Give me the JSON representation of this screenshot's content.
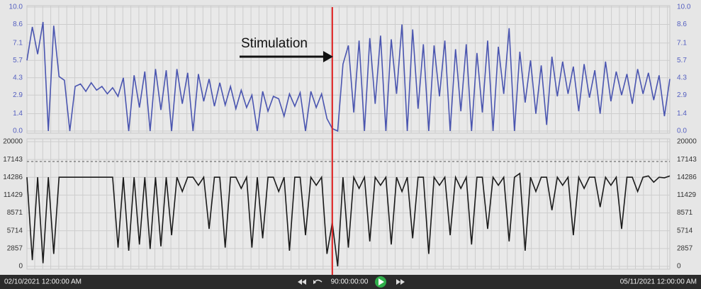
{
  "chart_data": [
    {
      "type": "line",
      "annotation": "Stimulation",
      "marker_index": 57,
      "marker_color": "#e02020",
      "ylim": [
        0,
        10
      ],
      "yticks": [
        {
          "value": 0,
          "label": "0.0"
        },
        1.4,
        2.9,
        4.3,
        5.7,
        7.1,
        8.6,
        {
          "value": 10,
          "label": "10.0"
        }
      ],
      "tick_color": "#5560c0",
      "grid": true,
      "series": [
        {
          "color": "#4a55b0",
          "values": [
            5.7,
            8.4,
            6.2,
            8.8,
            0,
            8.5,
            4.4,
            4.1,
            0,
            3.6,
            3.8,
            3.2,
            3.9,
            3.3,
            3.6,
            3.0,
            3.5,
            2.8,
            4.3,
            0,
            4.5,
            1.9,
            4.8,
            0,
            5.0,
            1.7,
            4.9,
            0,
            5.0,
            2.2,
            4.7,
            0,
            4.6,
            2.4,
            4.2,
            2.0,
            3.9,
            2.1,
            3.6,
            1.8,
            3.3,
            1.9,
            2.9,
            0,
            3.2,
            1.6,
            2.8,
            2.6,
            1.2,
            3.0,
            2.0,
            3.1,
            0,
            3.2,
            1.9,
            3.0,
            1.0,
            0.2,
            0,
            5.4,
            6.9,
            1.5,
            7.3,
            0,
            7.5,
            2.2,
            7.7,
            0,
            7.4,
            3.0,
            8.6,
            0,
            8.2,
            1.8,
            7.0,
            0,
            6.9,
            2.8,
            7.3,
            0,
            6.6,
            1.6,
            7.0,
            0,
            6.3,
            1.5,
            7.3,
            0,
            6.8,
            3.0,
            8.3,
            0,
            6.4,
            2.3,
            5.7,
            1.4,
            5.3,
            0.5,
            6.0,
            2.8,
            5.6,
            3.0,
            5.2,
            1.6,
            5.4,
            2.7,
            4.9,
            1.4,
            5.6,
            2.4,
            4.8,
            2.9,
            4.6,
            2.2,
            5.0,
            3.0,
            4.7,
            2.5,
            4.5,
            1.2,
            4.2
          ]
        }
      ]
    },
    {
      "type": "line",
      "ylim": [
        0,
        20000
      ],
      "yticks": [
        0,
        2857,
        5714,
        8571,
        11429,
        14286,
        17143,
        20000
      ],
      "tick_color": "#333333",
      "grid": true,
      "series": [
        {
          "color": "#1a1a1a",
          "values": [
            14300,
            1000,
            14300,
            500,
            14300,
            2000,
            14300,
            14300,
            14300,
            14300,
            14300,
            14300,
            14300,
            14300,
            14300,
            14300,
            14300,
            3000,
            14300,
            2500,
            14300,
            3500,
            14300,
            2800,
            14300,
            3200,
            14300,
            5000,
            14300,
            12000,
            14300,
            14300,
            13000,
            14300,
            6000,
            14300,
            14300,
            3000,
            14300,
            14300,
            12500,
            14300,
            3000,
            14300,
            4500,
            14300,
            14300,
            12000,
            14300,
            2500,
            14300,
            14300,
            5000,
            14300,
            13000,
            14300,
            2000,
            7000,
            0,
            14300,
            3000,
            14300,
            12500,
            14300,
            4000,
            14300,
            13000,
            14300,
            3500,
            14300,
            12000,
            14300,
            4500,
            14300,
            14300,
            2000,
            14300,
            13000,
            14300,
            5000,
            14300,
            12500,
            14300,
            3500,
            14300,
            14300,
            6000,
            14300,
            13000,
            14300,
            4000,
            14300,
            14900,
            2500,
            14300,
            12000,
            14300,
            14300,
            9000,
            14300,
            13000,
            14300,
            5000,
            14300,
            12500,
            14300,
            14300,
            9500,
            14300,
            13000,
            14300,
            6000,
            14300,
            14300,
            12000,
            14300,
            14500,
            13500,
            14300,
            14200,
            14500
          ]
        }
      ]
    }
  ],
  "toolbar": {
    "start": "02/10/2021 12:00:00 AM",
    "duration": "90:00:00:00",
    "end": "05/11/2021 12:00:00 AM"
  }
}
